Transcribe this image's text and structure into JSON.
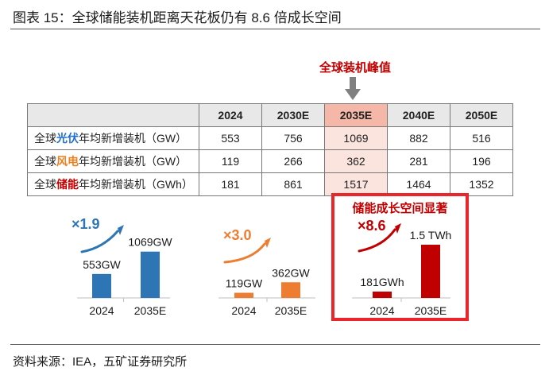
{
  "title": "图表 15：全球储能装机距离天花板仍有 8.6 倍成长空间",
  "peak_label": "全球装机峰值",
  "table": {
    "headers": [
      "",
      "2024",
      "2030E",
      "2035E",
      "2040E",
      "2050E"
    ],
    "highlight_column": "2035E",
    "rows": [
      {
        "prefix": "全球",
        "keyword": "光伏",
        "suffix": "年均新增装机（GW）",
        "values": [
          "553",
          "756",
          "1069",
          "882",
          "516"
        ]
      },
      {
        "prefix": "全球",
        "keyword": "风电",
        "suffix": "年均新增装机（GW）",
        "values": [
          "119",
          "266",
          "362",
          "281",
          "196"
        ]
      },
      {
        "prefix": "全球",
        "keyword": "储能",
        "suffix": "年均新增装机（GWh）",
        "values": [
          "181",
          "861",
          "1517",
          "1464",
          "1352"
        ]
      }
    ]
  },
  "chart_data": [
    {
      "type": "bar",
      "name": "solar",
      "categories": [
        "2024",
        "2035E"
      ],
      "values": [
        553,
        1069
      ],
      "data_labels": [
        "553GW",
        "1069GW"
      ],
      "multiplier": "×1.9",
      "color": "#2e75b6",
      "ylim": [
        0,
        1100
      ]
    },
    {
      "type": "bar",
      "name": "wind",
      "categories": [
        "2024",
        "2035E"
      ],
      "values": [
        119,
        362
      ],
      "data_labels": [
        "119GW",
        "362GW"
      ],
      "multiplier": "×3.0",
      "color": "#ed7d31",
      "ylim": [
        0,
        1100
      ]
    },
    {
      "type": "bar",
      "name": "storage",
      "categories": [
        "2024",
        "2035E"
      ],
      "values": [
        181,
        1517
      ],
      "data_labels": [
        "181GWh",
        "1.5 TWh"
      ],
      "multiplier": "×8.6",
      "color": "#c00000",
      "ylim": [
        0,
        1517
      ],
      "box_title": "储能成长空间显著"
    }
  ],
  "source": "资料来源：IEA，五矿证券研究所"
}
